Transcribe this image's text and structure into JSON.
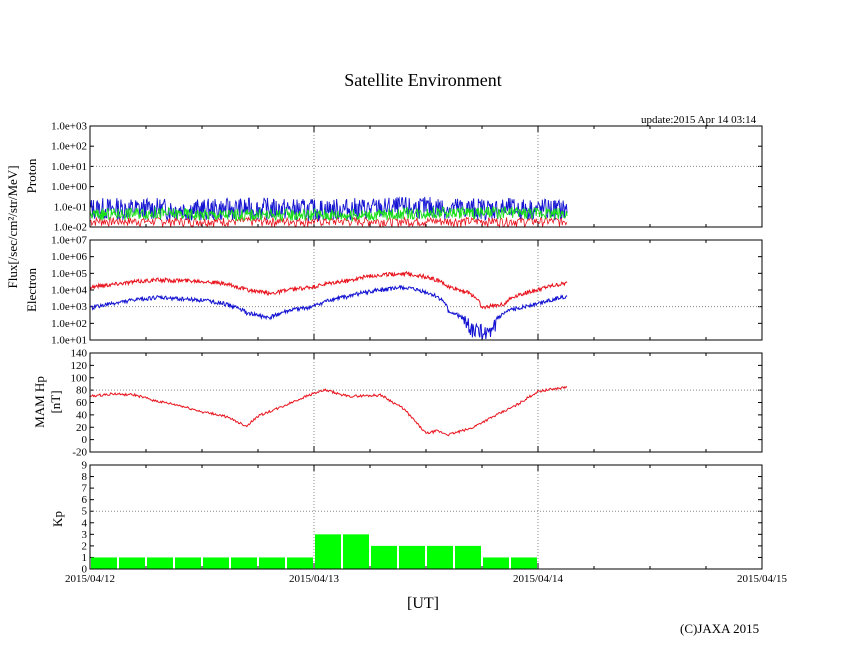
{
  "title": "Satellite Environment",
  "update": "update:2015 Apr 14 03:14",
  "copyright": "(C)JAXA 2015",
  "x_unit": "[UT]",
  "y_flux_label": "Flux[/sec/cm²/str/MeV]",
  "colors": {
    "red": "#e8141e",
    "blue": "#1414d2",
    "green": "#18e018",
    "kp_bar": "#00ff00",
    "grid": "#888888"
  },
  "chart_data": [
    {
      "type": "line",
      "panel": "proton",
      "ylabel": "Proton",
      "scale": "log",
      "ylim": [
        0.01,
        1000
      ],
      "yticks": [
        "1.0e-02",
        "1.0e-01",
        "1.0e+00",
        "1.0e+01",
        "1.0e+02",
        "1.0e+03"
      ],
      "xticks": [
        "2015/04/12",
        "2015/04/13",
        "2015/04/14",
        "2015/04/15"
      ],
      "xlim_days": [
        0,
        3
      ],
      "series": [
        {
          "name": "proton-blue",
          "color": "blue",
          "x": [
            0,
            0.25,
            0.5,
            0.75,
            1.0,
            1.25,
            1.5,
            1.75,
            2.13
          ],
          "y": [
            0.08,
            0.08,
            0.07,
            0.08,
            0.07,
            0.08,
            0.09,
            0.08,
            0.07
          ]
        },
        {
          "name": "proton-green",
          "color": "green",
          "x": [
            0,
            0.25,
            0.5,
            0.75,
            1.0,
            1.25,
            1.5,
            1.75,
            2.13
          ],
          "y": [
            0.04,
            0.05,
            0.04,
            0.04,
            0.04,
            0.04,
            0.05,
            0.05,
            0.05
          ]
        }
      ]
    },
    {
      "type": "line",
      "panel": "electron",
      "ylabel": "Electron",
      "scale": "log",
      "ylim": [
        10,
        10000000
      ],
      "yticks": [
        "1.0e+01",
        "1.0e+02",
        "1.0e+03",
        "1.0e+04",
        "1.0e+05",
        "1.0e+06",
        "1.0e+07"
      ],
      "series": [
        {
          "name": "electron-red",
          "color": "red",
          "x": [
            0,
            0.1,
            0.3,
            0.5,
            0.7,
            0.8,
            1.0,
            1.15,
            1.25,
            1.4,
            1.5,
            1.6,
            1.75,
            1.85,
            2.0,
            2.13
          ],
          "y": [
            15000,
            22000,
            40000,
            35000,
            10000,
            6000,
            15000,
            35000,
            70000,
            100000,
            60000,
            15000,
            800,
            1500,
            10000,
            25000
          ]
        },
        {
          "name": "electron-blue",
          "color": "blue",
          "x": [
            0,
            0.1,
            0.3,
            0.5,
            0.7,
            0.8,
            1.0,
            1.15,
            1.25,
            1.4,
            1.5,
            1.6,
            1.7,
            1.8,
            2.0,
            2.13
          ],
          "y": [
            800,
            1500,
            3500,
            2500,
            400,
            200,
            1000,
            4000,
            8000,
            14000,
            7000,
            500,
            40,
            20,
            1500,
            4000
          ]
        }
      ]
    },
    {
      "type": "line",
      "panel": "mamhp",
      "ylabel": "MAM Hp [nT]",
      "ylabel_lines": [
        "MAM Hp",
        "[nT]"
      ],
      "scale": "linear",
      "ylim": [
        -20,
        140
      ],
      "yticks": [
        "-20",
        "0",
        "20",
        "40",
        "60",
        "80",
        "100",
        "120",
        "140"
      ],
      "series": [
        {
          "name": "mamhp-red",
          "color": "red",
          "x": [
            0,
            0.1,
            0.2,
            0.3,
            0.4,
            0.5,
            0.6,
            0.7,
            0.75,
            0.85,
            0.95,
            1.0,
            1.05,
            1.15,
            1.3,
            1.4,
            1.5,
            1.55,
            1.6,
            1.7,
            1.75,
            1.9,
            2.0,
            2.13
          ],
          "y": [
            70,
            74,
            72,
            62,
            55,
            45,
            38,
            22,
            38,
            52,
            68,
            75,
            80,
            70,
            72,
            50,
            10,
            14,
            8,
            18,
            28,
            55,
            78,
            85
          ]
        }
      ]
    },
    {
      "type": "bar",
      "panel": "kp",
      "ylabel": "Kp",
      "ylim": [
        0,
        9
      ],
      "yticks": [
        "0",
        "1",
        "2",
        "3",
        "4",
        "5",
        "6",
        "7",
        "8",
        "9"
      ],
      "bar_width_days": 0.125,
      "values": [
        1,
        1,
        1,
        1,
        1,
        1,
        1,
        1,
        3,
        3,
        2,
        2,
        2,
        2,
        1,
        1
      ]
    }
  ]
}
